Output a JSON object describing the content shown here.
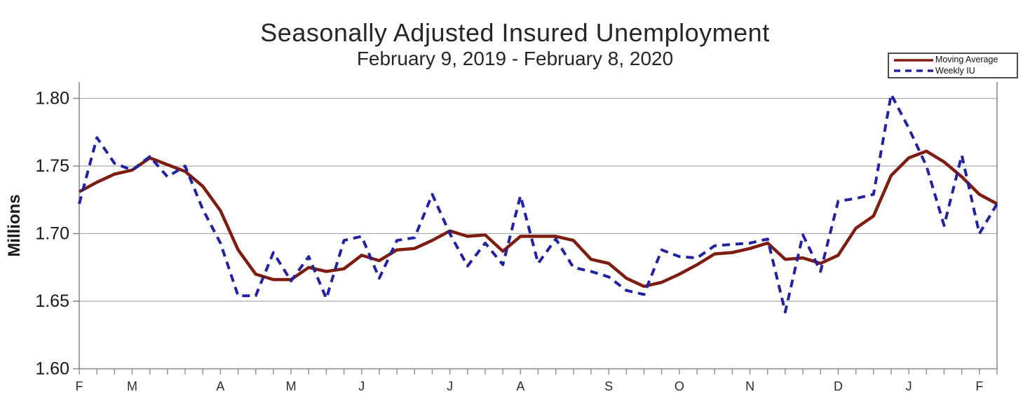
{
  "title": "Seasonally Adjusted Insured Unemployment",
  "subtitle": "February 9, 2019 - February 8, 2020",
  "y_axis": {
    "title": "Millions",
    "ticks": [
      {
        "label": "1.80",
        "value": 1.8
      },
      {
        "label": "1.75",
        "value": 1.75
      },
      {
        "label": "1.70",
        "value": 1.7
      },
      {
        "label": "1.65",
        "value": 1.65
      },
      {
        "label": "1.60",
        "value": 1.6
      }
    ]
  },
  "x_axis": {
    "weekly_tick_count": 53,
    "month_ticks": [
      {
        "label": "F",
        "week": 0
      },
      {
        "label": "M",
        "week": 3
      },
      {
        "label": "A",
        "week": 8
      },
      {
        "label": "M",
        "week": 12
      },
      {
        "label": "J",
        "week": 16
      },
      {
        "label": "J",
        "week": 21
      },
      {
        "label": "A",
        "week": 25
      },
      {
        "label": "S",
        "week": 30
      },
      {
        "label": "O",
        "week": 34
      },
      {
        "label": "N",
        "week": 38
      },
      {
        "label": "D",
        "week": 43
      },
      {
        "label": "J",
        "week": 47
      },
      {
        "label": "F",
        "week": 51
      }
    ]
  },
  "legend": {
    "items": [
      {
        "label": "Moving Average",
        "series_index": 0
      },
      {
        "label": "Weekly IU",
        "series_index": 1
      }
    ]
  },
  "chart_data": {
    "type": "line",
    "title": "Seasonally Adjusted Insured Unemployment",
    "subtitle": "February 9, 2019 - February 8, 2020",
    "xlabel": "",
    "ylabel": "Millions",
    "x_unit": "week",
    "num_points": 53,
    "month_labels": [
      "F",
      "M",
      "A",
      "M",
      "J",
      "J",
      "A",
      "S",
      "O",
      "N",
      "D",
      "J",
      "F"
    ],
    "ylim": [
      1.6,
      1.8125
    ],
    "yticks": [
      1.6,
      1.65,
      1.7,
      1.75,
      1.8
    ],
    "grid": "horizontal",
    "legend_position": "top-right",
    "series": [
      {
        "name": "Moving Average",
        "color": "#7e1c10",
        "line_style": "solid",
        "values": [
          1.731,
          1.738,
          1.744,
          1.747,
          1.756,
          1.751,
          1.746,
          1.735,
          1.717,
          1.688,
          1.67,
          1.666,
          1.666,
          1.675,
          1.672,
          1.674,
          1.684,
          1.68,
          1.688,
          1.689,
          1.695,
          1.702,
          1.698,
          1.699,
          1.687,
          1.698,
          1.698,
          1.698,
          1.695,
          1.681,
          1.678,
          1.667,
          1.661,
          1.664,
          1.67,
          1.677,
          1.685,
          1.686,
          1.689,
          1.693,
          1.681,
          1.682,
          1.678,
          1.684,
          1.704,
          1.713,
          1.743,
          1.756,
          1.761,
          1.753,
          1.742,
          1.729,
          1.722
        ]
      },
      {
        "name": "Weekly IU",
        "color": "#2121a4",
        "line_style": "dashed",
        "values": [
          1.722,
          1.771,
          1.752,
          1.747,
          1.757,
          1.742,
          1.75,
          1.718,
          1.693,
          1.654,
          1.654,
          1.686,
          1.665,
          1.683,
          1.652,
          1.695,
          1.698,
          1.667,
          1.695,
          1.697,
          1.729,
          1.7,
          1.676,
          1.693,
          1.677,
          1.728,
          1.678,
          1.696,
          1.675,
          1.672,
          1.668,
          1.658,
          1.655,
          1.688,
          1.683,
          1.682,
          1.691,
          1.692,
          1.693,
          1.696,
          1.642,
          1.699,
          1.672,
          1.724,
          1.726,
          1.729,
          1.803,
          1.778,
          1.75,
          1.706,
          1.758,
          1.7,
          1.722
        ]
      }
    ]
  }
}
